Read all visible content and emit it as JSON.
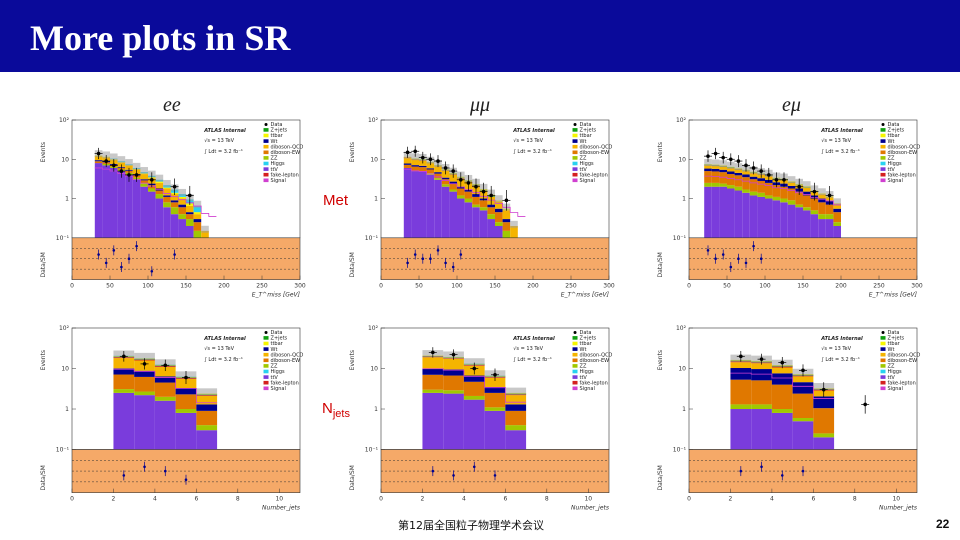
{
  "slide": {
    "title": "More plots in SR",
    "columns": [
      "ee",
      "μμ",
      "eμ"
    ],
    "rows": [
      {
        "label": "Met",
        "sub": ""
      },
      {
        "label": "N",
        "sub": "jets"
      }
    ],
    "footer": "第12届全国粒子物理学术会议",
    "page_number": "22"
  },
  "legend": {
    "atlas": "ATLAS Internal",
    "energy": "√s = 13 TeV",
    "lumi": "∫ Ldt = 3.2 fb⁻¹",
    "entries": [
      {
        "name": "Data",
        "color": "#000000"
      },
      {
        "name": "Z+jets",
        "color": "#12a012"
      },
      {
        "name": "ttbar",
        "color": "#f6f600"
      },
      {
        "name": "Wt",
        "color": "#000090"
      },
      {
        "name": "diboson-QCD",
        "color": "#f5b400"
      },
      {
        "name": "diboson-EW",
        "color": "#e07800"
      },
      {
        "name": "ZZ",
        "color": "#a0c800"
      },
      {
        "name": "Higgs",
        "color": "#28d2f0"
      },
      {
        "name": "ttV",
        "color": "#7a3cdc"
      },
      {
        "name": "fake-lepton",
        "color": "#d42020"
      },
      {
        "name": "Signal",
        "color": "#d040d0"
      }
    ]
  },
  "axes": {
    "y_label": "Events",
    "ratio_label": "Data/SM",
    "met_xlabel": "E_T^miss [GeV]",
    "njet_xlabel": "Number_jets",
    "met_ticks": [
      "0",
      "50",
      "100",
      "150",
      "200",
      "250",
      "300"
    ],
    "njet_ticks": [
      "0",
      "2",
      "4",
      "6",
      "8",
      "10"
    ],
    "y_ticks": [
      "10²",
      "10",
      "1",
      "10⁻¹"
    ]
  },
  "chart_data": [
    {
      "type": "bar",
      "title": "ee",
      "xlabel": "E_T^miss [GeV]",
      "ylabel": "Events",
      "x_range": [
        0,
        300
      ],
      "y_range": [
        0.1,
        100
      ],
      "y_log": true,
      "bin_edges": [
        30,
        40,
        50,
        60,
        70,
        80,
        90,
        100,
        110,
        120,
        130,
        140,
        150,
        160,
        170,
        180,
        190
      ],
      "stack": [
        [
          8,
          0,
          0.9,
          0.6,
          2.6,
          0,
          0,
          0.4,
          0.1
        ],
        [
          7,
          0.6,
          0.8,
          0.6,
          2.2,
          0,
          0,
          0.4,
          0.1
        ],
        [
          6,
          0.5,
          0.7,
          0.4,
          2.2,
          0,
          0,
          0.3,
          0.3
        ],
        [
          5,
          0.5,
          0.6,
          0.3,
          1.8,
          0,
          0,
          0.3,
          0.4
        ],
        [
          4,
          0.5,
          0.6,
          0.3,
          1.6,
          0,
          0,
          0.2,
          0.3
        ],
        [
          3,
          0.4,
          0.5,
          0.3,
          1.3,
          0,
          0,
          0.2,
          0.3
        ],
        [
          2,
          0.4,
          0.5,
          0.2,
          1.1,
          0,
          0,
          0.2,
          0.3
        ],
        [
          1.5,
          0.3,
          0.4,
          0.2,
          0.9,
          0,
          0,
          0.2,
          0.3
        ],
        [
          1,
          0.3,
          0.3,
          0.2,
          0.7,
          0,
          0,
          0.2,
          0.3
        ],
        [
          0.6,
          0.2,
          0.3,
          0.1,
          0.6,
          0,
          0,
          0.1,
          0.3
        ],
        [
          0.4,
          0.2,
          0.2,
          0.1,
          0.4,
          0,
          0,
          0.1,
          0.3
        ],
        [
          0.3,
          0.1,
          0.2,
          0.1,
          0.3,
          0,
          0,
          0.1,
          0.2
        ],
        [
          0.2,
          0.1,
          0.1,
          0.05,
          0.2,
          0,
          0,
          0.1,
          0.2
        ],
        [
          0.1,
          0.05,
          0.1,
          0.05,
          0.1,
          0,
          0,
          0.05,
          0.2
        ],
        [
          0.05,
          0,
          0.05,
          0,
          0.05,
          0,
          0,
          0,
          0
        ],
        [
          0,
          0,
          0,
          0,
          0,
          0,
          0,
          0,
          0
        ]
      ],
      "data": [
        {
          "x": 35,
          "y": 14
        },
        {
          "x": 45,
          "y": 9
        },
        {
          "x": 55,
          "y": 7
        },
        {
          "x": 65,
          "y": 5
        },
        {
          "x": 75,
          "y": 4
        },
        {
          "x": 85,
          "y": 4
        },
        {
          "x": 105,
          "y": 3
        },
        {
          "x": 135,
          "y": 2
        },
        {
          "x": 155,
          "y": 1.2
        }
      ],
      "ratio": [
        1.1,
        0.9,
        1.2,
        0.8,
        1.0,
        1.3,
        0.7,
        1.1
      ]
    },
    {
      "type": "bar",
      "title": "μμ",
      "xlabel": "E_T^miss [GeV]",
      "ylabel": "Events",
      "x_range": [
        0,
        300
      ],
      "y_range": [
        0.1,
        100
      ],
      "y_log": true,
      "bin_edges": [
        30,
        40,
        50,
        60,
        70,
        80,
        90,
        100,
        110,
        120,
        130,
        140,
        150,
        160,
        170,
        180,
        190,
        200
      ],
      "stack": [
        [
          6,
          0,
          1.2,
          0.6,
          3.4,
          0.2,
          0,
          0.2,
          0
        ],
        [
          5,
          0,
          1.5,
          0.6,
          2.8,
          0.2,
          0.2,
          0.2,
          0
        ],
        [
          5,
          0,
          1.3,
          0.5,
          2.6,
          0.2,
          0.2,
          0.3,
          0
        ],
        [
          4,
          0.4,
          1.1,
          0.4,
          2.2,
          0.1,
          0.1,
          0.3,
          0
        ],
        [
          3,
          0.3,
          1.0,
          0.4,
          2.0,
          0.1,
          0.1,
          0.2,
          0
        ],
        [
          2,
          0.3,
          0.8,
          0.3,
          1.8,
          0.1,
          0.1,
          0.2,
          0
        ],
        [
          1.5,
          0.2,
          0.7,
          0.3,
          1.4,
          0.1,
          0.1,
          0.2,
          0
        ],
        [
          1,
          0.2,
          0.6,
          0.2,
          1.2,
          0.1,
          0.1,
          0.2,
          0
        ],
        [
          0.8,
          0.2,
          0.5,
          0.2,
          1.0,
          0.05,
          0.1,
          0.1,
          0
        ],
        [
          0.6,
          0.1,
          0.4,
          0.2,
          0.8,
          0.05,
          0.1,
          0.1,
          0
        ],
        [
          0.5,
          0.1,
          0.3,
          0.1,
          0.6,
          0,
          0.05,
          0.1,
          0
        ],
        [
          0.3,
          0.1,
          0.2,
          0.1,
          0.4,
          0,
          0.05,
          0.1,
          0
        ],
        [
          0.2,
          0.05,
          0.2,
          0.1,
          0.3,
          0,
          0,
          0.05,
          0
        ],
        [
          0.1,
          0.05,
          0.1,
          0.05,
          0.2,
          0,
          0,
          0.05,
          0
        ],
        [
          0.05,
          0,
          0.05,
          0,
          0.1,
          0,
          0,
          0,
          0
        ],
        [
          0,
          0,
          0,
          0,
          0,
          0,
          0,
          0,
          0
        ]
      ],
      "data": [
        {
          "x": 35,
          "y": 15
        },
        {
          "x": 45,
          "y": 16
        },
        {
          "x": 55,
          "y": 11
        },
        {
          "x": 65,
          "y": 10
        },
        {
          "x": 75,
          "y": 9
        },
        {
          "x": 85,
          "y": 6
        },
        {
          "x": 95,
          "y": 5
        },
        {
          "x": 105,
          "y": 3
        },
        {
          "x": 115,
          "y": 2.5
        },
        {
          "x": 125,
          "y": 2
        },
        {
          "x": 135,
          "y": 1.5
        },
        {
          "x": 145,
          "y": 1.2
        },
        {
          "x": 165,
          "y": 0.9
        }
      ],
      "ratio": [
        0.9,
        1.1,
        1.0,
        1.0,
        1.2,
        0.9,
        0.8,
        1.1
      ]
    },
    {
      "type": "bar",
      "title": "eμ",
      "xlabel": "E_T^miss [GeV]",
      "ylabel": "Events",
      "x_range": [
        0,
        300
      ],
      "y_range": [
        0.1,
        100
      ],
      "y_log": true,
      "bin_edges": [
        20,
        30,
        40,
        50,
        60,
        70,
        80,
        90,
        100,
        110,
        120,
        130,
        140,
        150,
        160,
        170,
        180,
        190,
        200
      ],
      "stack": [
        [
          2,
          0.5,
          2.5,
          0.8,
          1.2,
          0.1,
          0.2,
          0.2,
          0
        ],
        [
          2,
          0.5,
          2.4,
          0.8,
          1.1,
          0.1,
          0.2,
          0.2,
          0
        ],
        [
          2,
          0.4,
          2.3,
          0.7,
          1.1,
          0.1,
          0.2,
          0.2,
          0
        ],
        [
          1.8,
          0.4,
          2.0,
          0.7,
          1.0,
          0.1,
          0.2,
          0.2,
          0
        ],
        [
          1.6,
          0.4,
          1.9,
          0.6,
          1.0,
          0.1,
          0.1,
          0.2,
          0
        ],
        [
          1.4,
          0.3,
          1.8,
          0.6,
          0.9,
          0.1,
          0.1,
          0.2,
          0
        ],
        [
          1.2,
          0.3,
          1.6,
          0.5,
          0.8,
          0.1,
          0.1,
          0.2,
          0
        ],
        [
          1.1,
          0.3,
          1.4,
          0.5,
          0.8,
          0.1,
          0.1,
          0.1,
          0
        ],
        [
          1.0,
          0.2,
          1.3,
          0.5,
          0.7,
          0.1,
          0.1,
          0.1,
          0
        ],
        [
          0.9,
          0.2,
          1.1,
          0.4,
          0.6,
          0,
          0.1,
          0.1,
          0
        ],
        [
          0.8,
          0.2,
          1.0,
          0.4,
          0.6,
          0,
          0.1,
          0.1,
          0
        ],
        [
          0.7,
          0.2,
          0.9,
          0.3,
          0.5,
          0,
          0.05,
          0.1,
          0
        ],
        [
          0.6,
          0.1,
          0.8,
          0.3,
          0.4,
          0,
          0.05,
          0.1,
          0
        ],
        [
          0.5,
          0.1,
          0.6,
          0.3,
          0.4,
          0,
          0.05,
          0.1,
          0
        ],
        [
          0.4,
          0.1,
          0.5,
          0.2,
          0.3,
          0,
          0.05,
          0.05,
          0
        ],
        [
          0.3,
          0.1,
          0.4,
          0.2,
          0.3,
          0,
          0,
          0.05,
          0
        ],
        [
          0.3,
          0.1,
          0.3,
          0.2,
          0.2,
          0,
          0,
          0.05,
          0
        ],
        [
          0.2,
          0.05,
          0.2,
          0.1,
          0.2,
          0,
          0,
          0,
          0
        ]
      ],
      "data": [
        {
          "x": 25,
          "y": 12
        },
        {
          "x": 35,
          "y": 14
        },
        {
          "x": 45,
          "y": 11
        },
        {
          "x": 55,
          "y": 10
        },
        {
          "x": 65,
          "y": 9
        },
        {
          "x": 75,
          "y": 7
        },
        {
          "x": 85,
          "y": 6
        },
        {
          "x": 95,
          "y": 5
        },
        {
          "x": 105,
          "y": 4
        },
        {
          "x": 115,
          "y": 3
        },
        {
          "x": 125,
          "y": 3
        },
        {
          "x": 145,
          "y": 2
        },
        {
          "x": 165,
          "y": 1.5
        },
        {
          "x": 185,
          "y": 1.2
        }
      ],
      "ratio": [
        1.2,
        1.0,
        1.1,
        0.8,
        1.0,
        0.9,
        1.3,
        1.0
      ]
    },
    {
      "type": "bar",
      "title": "ee",
      "xlabel": "Number_jets",
      "ylabel": "Events",
      "x_range": [
        0,
        11
      ],
      "y_range": [
        0.1,
        100
      ],
      "y_log": true,
      "bin_edges": [
        2,
        3,
        4,
        5,
        6,
        7
      ],
      "stack": [
        [
          2.5,
          0.6,
          4,
          3,
          8,
          1,
          0.6,
          0.6,
          0.3
        ],
        [
          2.2,
          0.5,
          3.5,
          2.6,
          7,
          0.9,
          0.5,
          0.5,
          0.3
        ],
        [
          1.6,
          0.4,
          2.5,
          1.9,
          4.5,
          0.6,
          0.4,
          0.4,
          0.2
        ],
        [
          0.8,
          0.2,
          1.3,
          1.0,
          2.2,
          0.3,
          0.2,
          0.2,
          0.1
        ],
        [
          0.3,
          0.1,
          0.5,
          0.4,
          0.8,
          0.1,
          0.1,
          0.1,
          0
        ]
      ],
      "data": [
        {
          "x": 2.5,
          "y": 20
        },
        {
          "x": 3.5,
          "y": 13
        },
        {
          "x": 4.5,
          "y": 12
        },
        {
          "x": 5.5,
          "y": 6
        }
      ],
      "ratio": [
        0.9,
        1.1,
        1.0,
        0.8
      ]
    },
    {
      "type": "bar",
      "title": "μμ",
      "xlabel": "Number_jets",
      "ylabel": "Events",
      "x_range": [
        0,
        11
      ],
      "y_range": [
        0.1,
        100
      ],
      "y_log": true,
      "bin_edges": [
        2,
        3,
        4,
        5,
        6,
        7
      ],
      "stack": [
        [
          2.5,
          0.5,
          4,
          3,
          9,
          0.9,
          0.5,
          0.5,
          0.2
        ],
        [
          2.4,
          0.5,
          3.8,
          2.8,
          8,
          0.8,
          0.5,
          0.5,
          0.2
        ],
        [
          1.7,
          0.4,
          2.6,
          2.0,
          5,
          0.6,
          0.4,
          0.4,
          0.2
        ],
        [
          0.9,
          0.2,
          1.4,
          1.0,
          2.4,
          0.3,
          0.2,
          0.2,
          0.1
        ],
        [
          0.3,
          0.1,
          0.5,
          0.4,
          0.9,
          0.1,
          0.1,
          0.1,
          0
        ]
      ],
      "data": [
        {
          "x": 2.5,
          "y": 25
        },
        {
          "x": 3.5,
          "y": 22
        },
        {
          "x": 4.5,
          "y": 10
        },
        {
          "x": 5.5,
          "y": 7
        }
      ],
      "ratio": [
        1.0,
        0.9,
        1.1,
        0.9
      ]
    },
    {
      "type": "bar",
      "title": "eμ",
      "xlabel": "Number_jets",
      "ylabel": "Events",
      "x_range": [
        0,
        11
      ],
      "y_range": [
        0.1,
        100
      ],
      "y_log": true,
      "bin_edges": [
        2,
        3,
        4,
        5,
        6,
        7
      ],
      "stack": [
        [
          1.0,
          0.3,
          4,
          5,
          4,
          0.8,
          0.6,
          0.6,
          0
        ],
        [
          1.0,
          0.3,
          3.8,
          4.6,
          3.8,
          0.7,
          0.6,
          0.6,
          0
        ],
        [
          0.8,
          0.2,
          3.0,
          3.6,
          3.0,
          0.6,
          0.5,
          0.5,
          0
        ],
        [
          0.5,
          0.1,
          1.8,
          2.2,
          1.8,
          0.3,
          0.3,
          0.3,
          0
        ],
        [
          0.2,
          0.05,
          0.8,
          1.0,
          0.8,
          0.2,
          0.1,
          0.1,
          0
        ]
      ],
      "data": [
        {
          "x": 2.5,
          "y": 20
        },
        {
          "x": 3.5,
          "y": 17
        },
        {
          "x": 4.5,
          "y": 14
        },
        {
          "x": 5.5,
          "y": 9
        },
        {
          "x": 6.5,
          "y": 3
        },
        {
          "x": 8.5,
          "y": 1.3
        }
      ],
      "ratio": [
        1.0,
        1.1,
        0.9,
        1.0
      ]
    }
  ]
}
